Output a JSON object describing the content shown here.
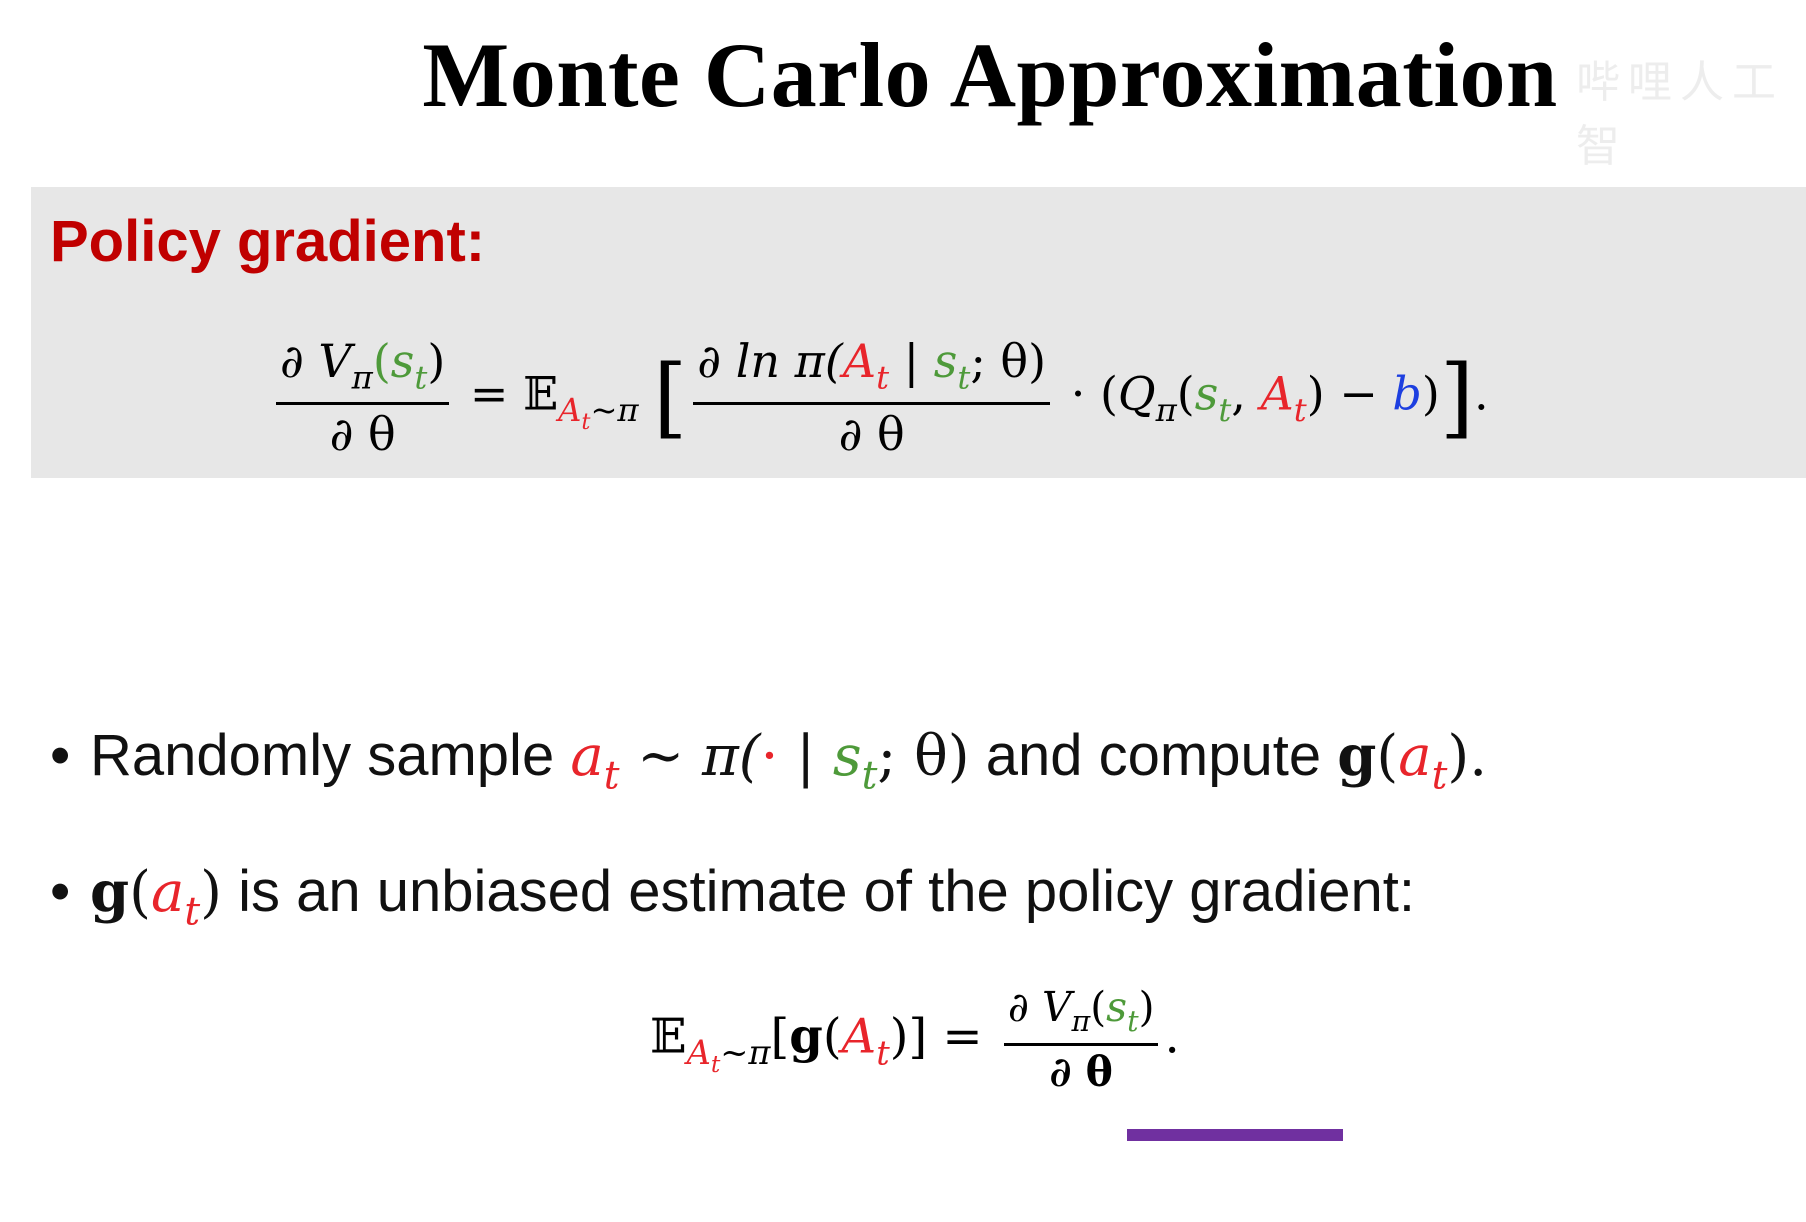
{
  "title": "Monte Carlo Approximation",
  "watermark": "哔哩人工智",
  "box": {
    "heading": "Policy gradient:"
  },
  "formula1": {
    "lhs_num_a": "∂ ",
    "lhs_num_V": "V",
    "lhs_num_pi": "π",
    "lhs_num_open": "(",
    "lhs_num_s": "s",
    "lhs_num_t": "t",
    "lhs_num_close": ")",
    "lhs_den": "∂ θ",
    "eq": " = ",
    "E": "𝔼",
    "sub_A": "A",
    "sub_t": "t",
    "sub_pi": "~π",
    "lbracket": "[",
    "rhs_num_a": "∂ ln π(",
    "rhs_num_A": "A",
    "rhs_num_t": "t",
    "rhs_num_bar": " | ",
    "rhs_num_s": "s",
    "rhs_num_t2": "t",
    "rhs_num_end": "; θ)",
    "rhs_den": "∂ θ",
    "dot": " · (",
    "Q": "Q",
    "Qpi": "π",
    "open": "(",
    "s": "s",
    "s_t": "t",
    "comma": ", ",
    "A": "A",
    "A_t": "t",
    "minus": ") − ",
    "b": "b",
    "close": ")",
    "rbracket": "]",
    "period": "."
  },
  "bullets": [
    {
      "bullet": "•",
      "text1": "Randomly sample ",
      "a": "a",
      "a_t": "t",
      "mid": " ~ π(",
      "cdot": "·",
      "bar": " | ",
      "s": "s",
      "s_t": "t",
      "end": "; θ)",
      "text2": " and compute ",
      "g": "g",
      "open": "(",
      "a2": "a",
      "a2_t": "t",
      "close": ").",
      "ga_close": ""
    },
    {
      "bullet": "•",
      "g": "g",
      "open": "(",
      "a": "a",
      "a_t": "t",
      "close": ")",
      "text": " is an unbiased estimate of the policy gradient:"
    }
  ],
  "formula2": {
    "E": "𝔼",
    "sub_A": "A",
    "sub_t": "t",
    "sub_pi": "~π",
    "open": "[",
    "g": "g",
    "paren": "(",
    "A": "A",
    "A_t": "t",
    "close": ")]",
    "eq": " = ",
    "num_a": "∂ ",
    "num_V": "V",
    "num_pi": "π",
    "num_open": "(",
    "num_s": "s",
    "num_t": "t",
    "num_close": ")",
    "den": "∂ θ",
    "period": "."
  },
  "colors": {
    "heading": "#c00000",
    "action": "#e8252b",
    "state": "#4e9a3a",
    "baseline": "#1d3fe0",
    "highlight": "#7030a0",
    "box": "#e7e7e7"
  }
}
